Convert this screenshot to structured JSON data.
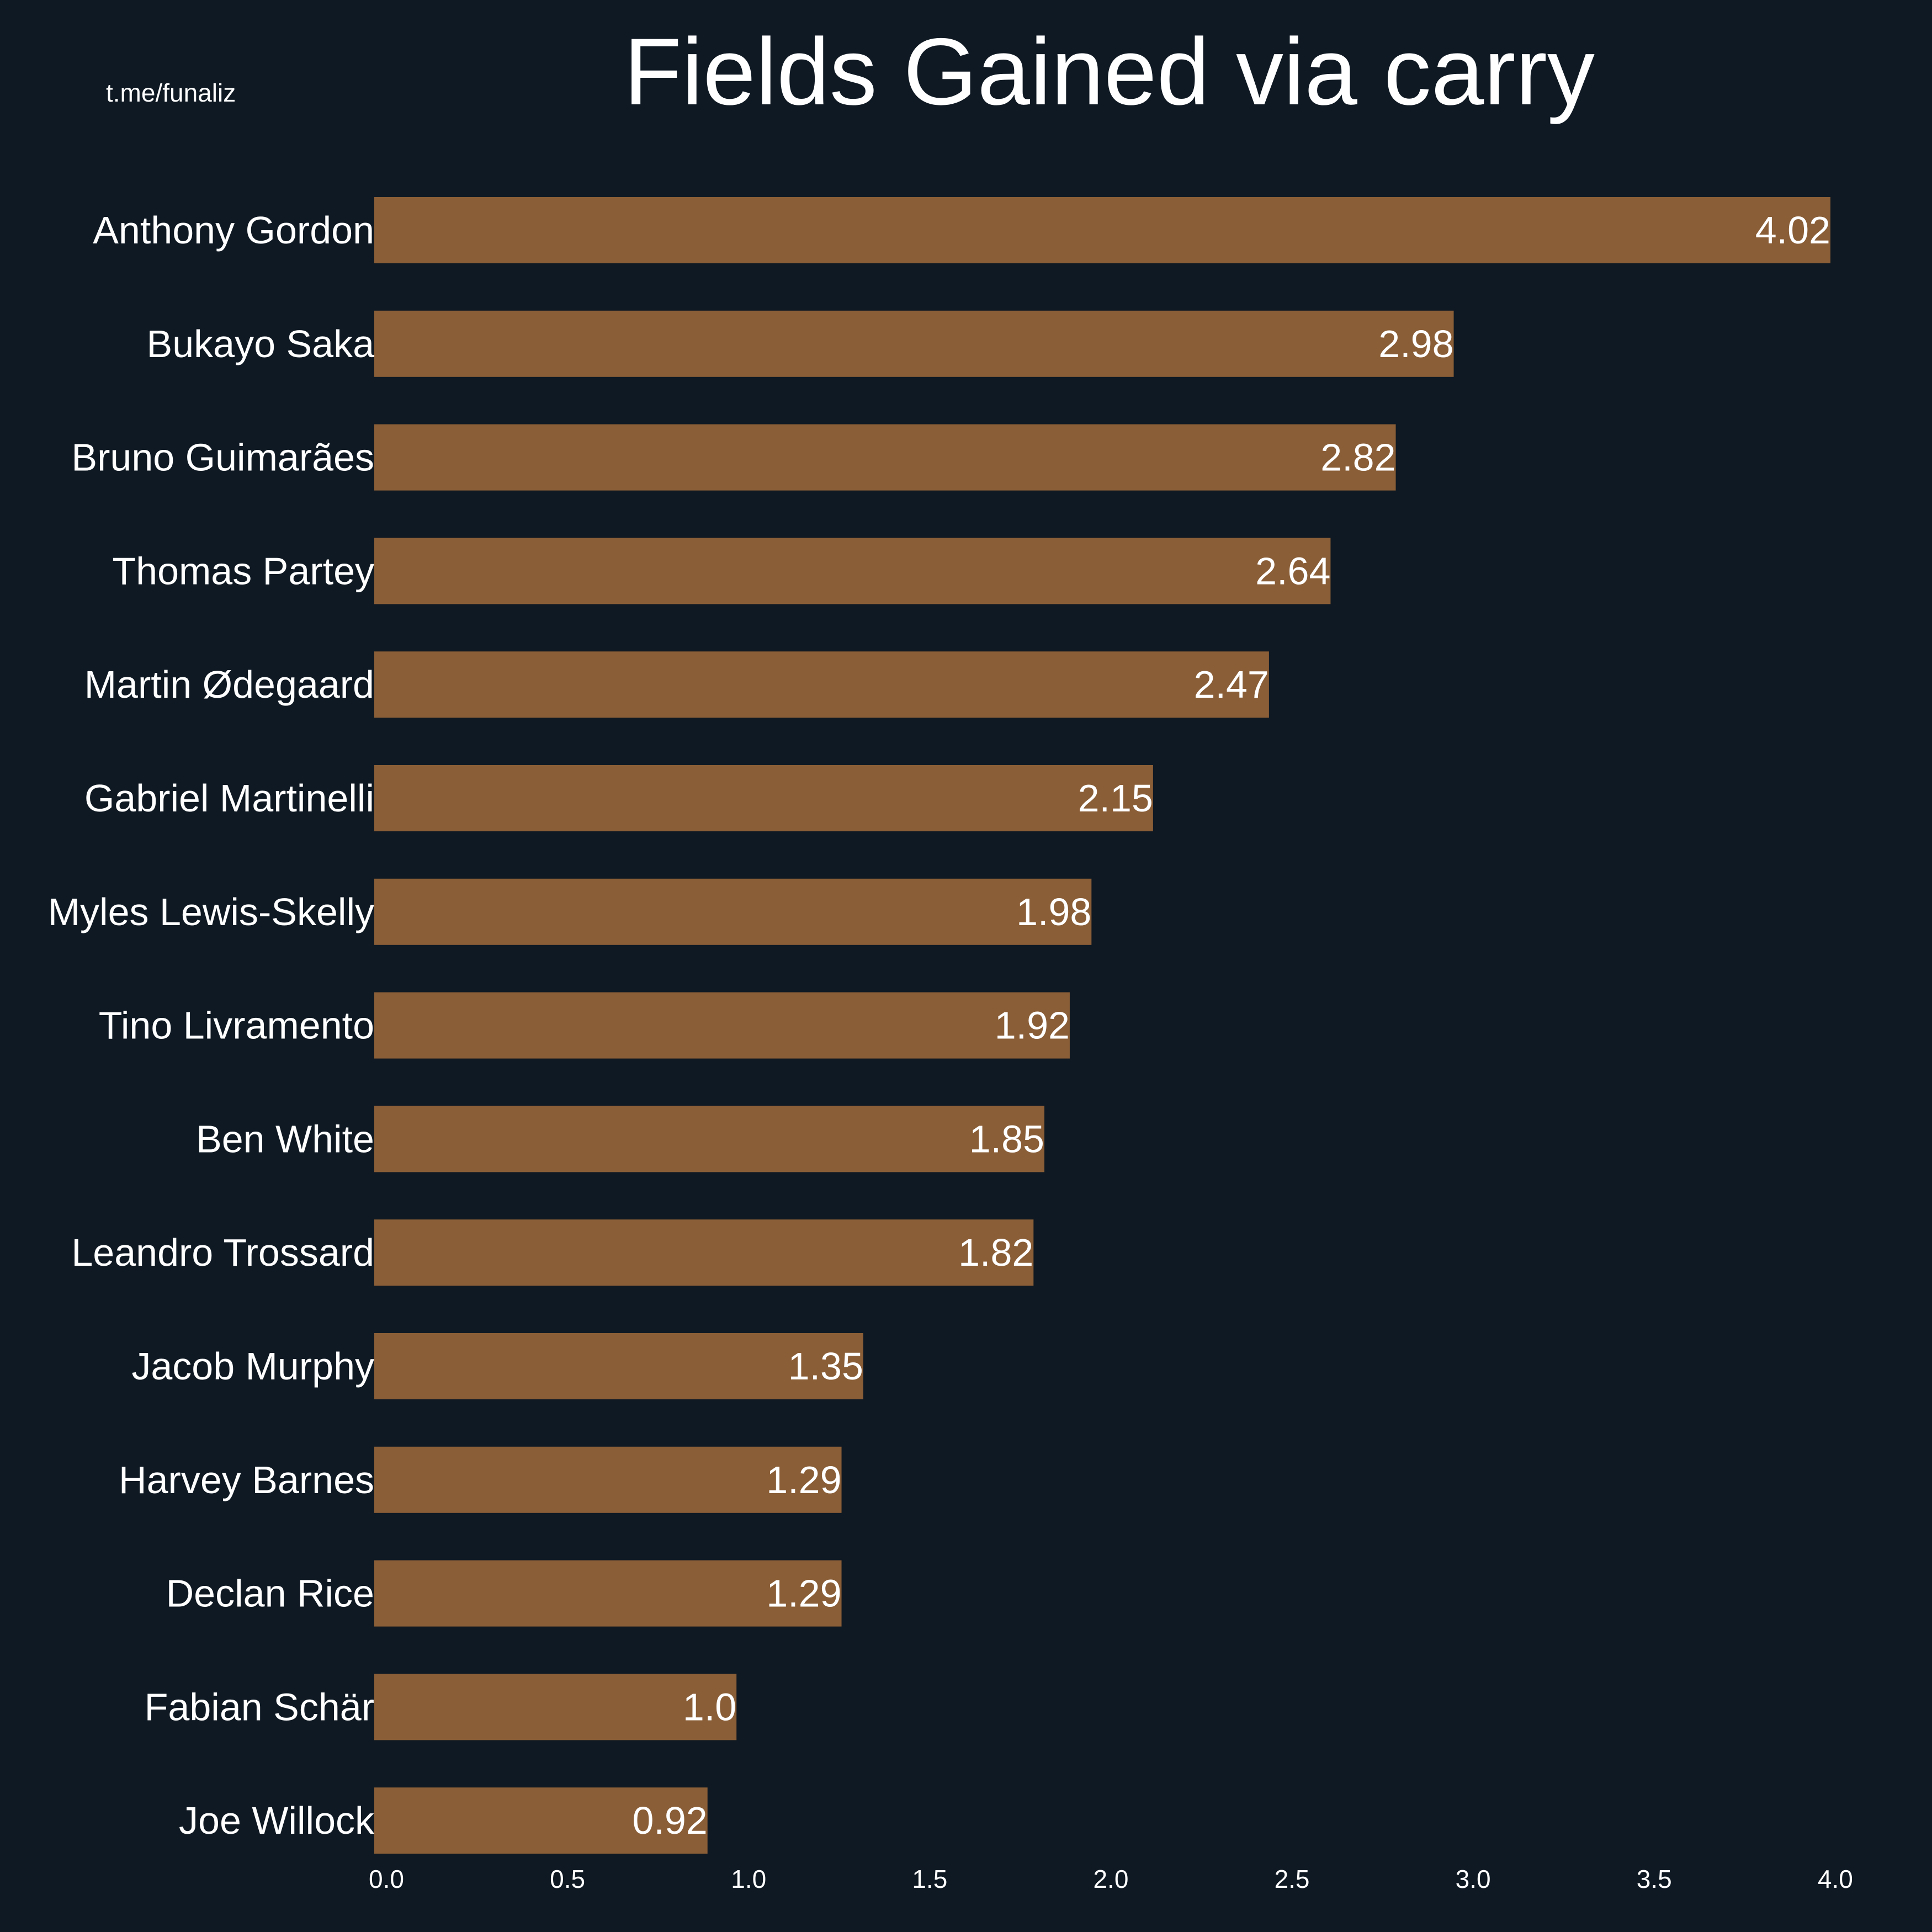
{
  "title": "Fields Gained via carry",
  "watermark": "t.me/funaliz",
  "colors": {
    "background": "#0f1923",
    "bar": "#8a5e37",
    "text": "#ffffff"
  },
  "chart_data": {
    "type": "bar",
    "orientation": "horizontal",
    "title": "Fields Gained via carry",
    "xlabel": "",
    "ylabel": "",
    "xlim": [
      0,
      4.02
    ],
    "xticks": [
      "0.0",
      "0.5",
      "1.0",
      "1.5",
      "2.0",
      "2.5",
      "3.0",
      "3.5",
      "4.0"
    ],
    "grid": false,
    "categories": [
      "Anthony Gordon",
      "Bukayo Saka",
      "Bruno Guimarães",
      "Thomas Partey",
      "Martin Ødegaard",
      "Gabriel Martinelli",
      "Myles Lewis-Skelly",
      "Tino Livramento",
      "Ben White",
      "Leandro Trossard",
      "Jacob Murphy",
      "Harvey Barnes",
      "Declan Rice",
      "Fabian Schär",
      "Joe Willock"
    ],
    "values": [
      4.02,
      2.98,
      2.82,
      2.64,
      2.47,
      2.15,
      1.98,
      1.92,
      1.85,
      1.82,
      1.35,
      1.29,
      1.29,
      1.0,
      0.92
    ],
    "value_labels": [
      "4.02",
      "2.98",
      "2.82",
      "2.64",
      "2.47",
      "2.15",
      "1.98",
      "1.92",
      "1.85",
      "1.82",
      "1.35",
      "1.29",
      "1.29",
      "1.0",
      "0.92"
    ]
  }
}
